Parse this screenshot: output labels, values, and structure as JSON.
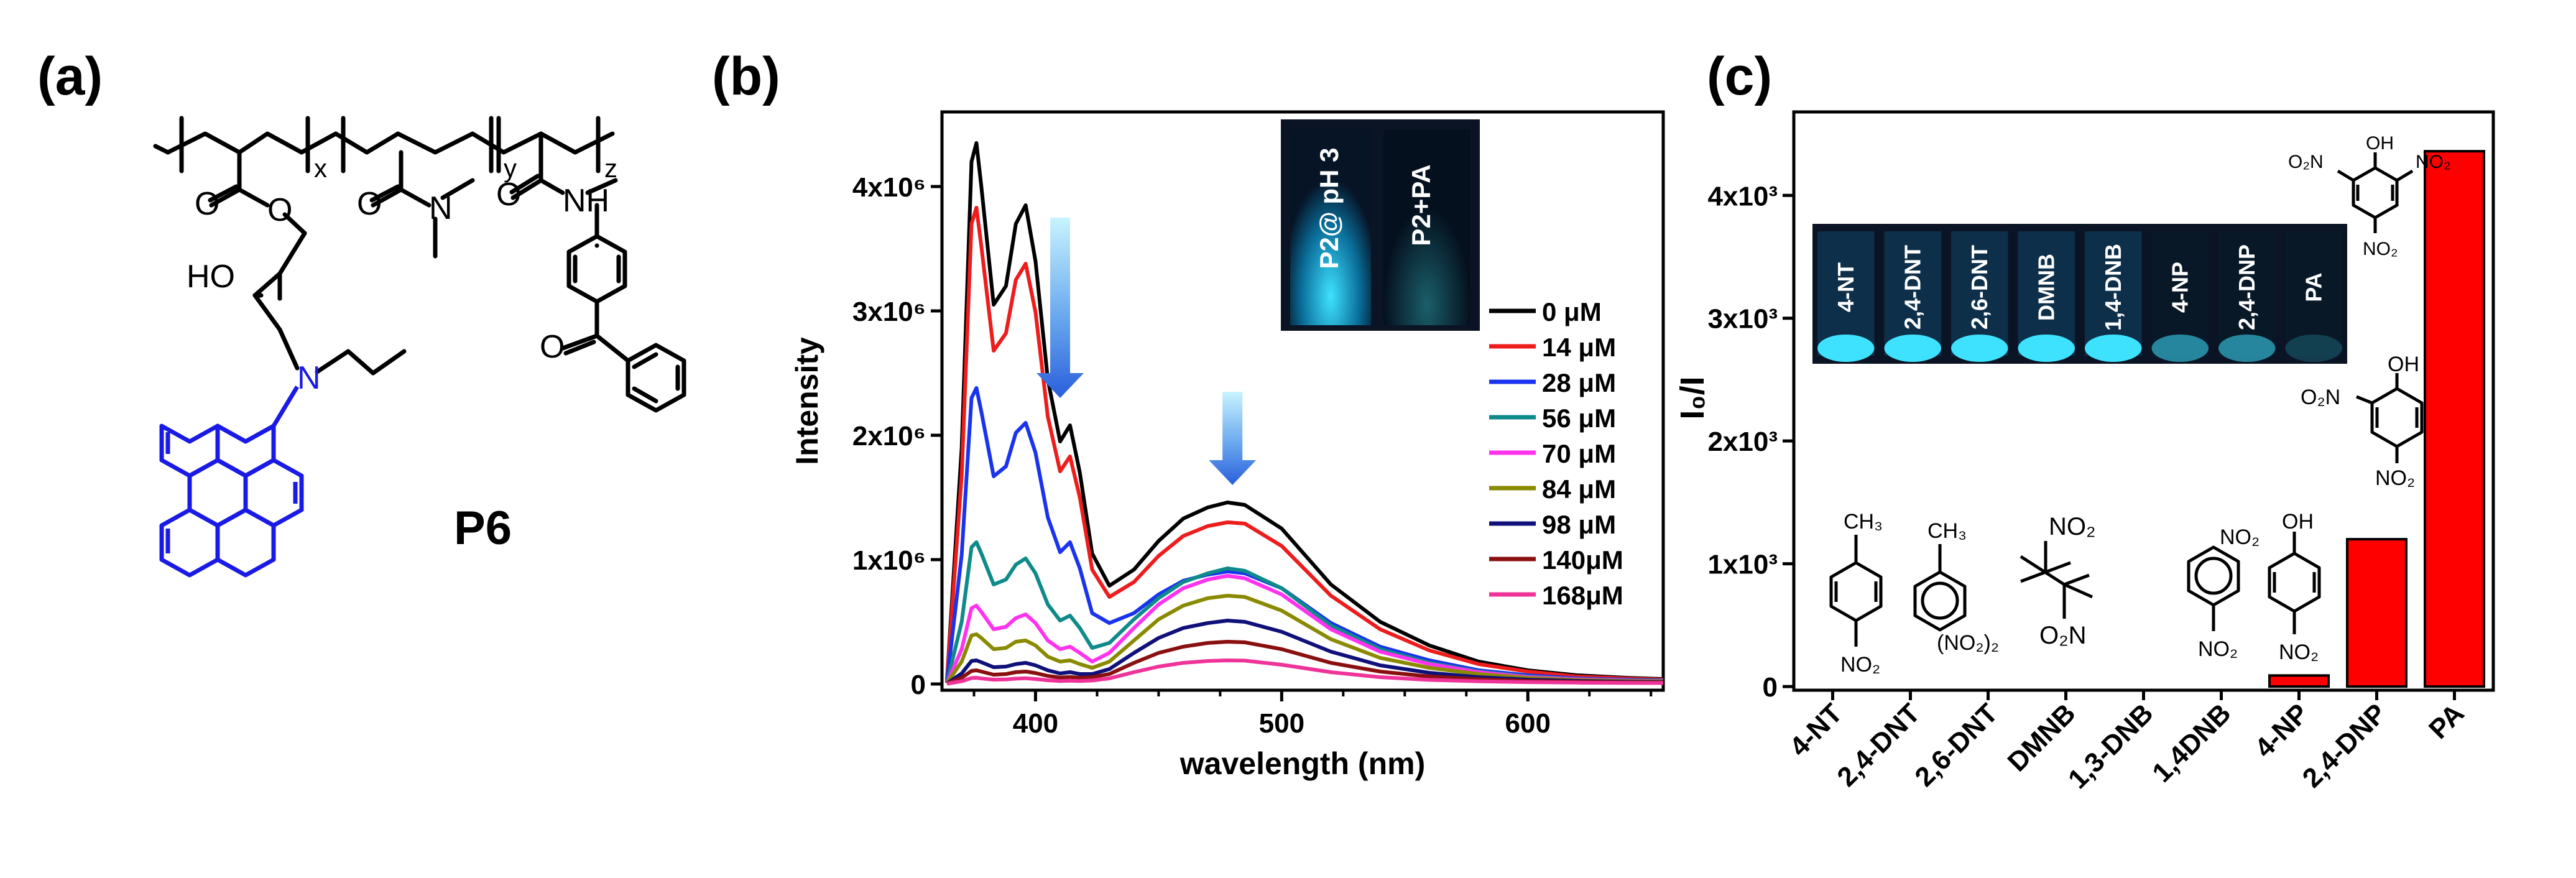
{
  "panels": {
    "a": {
      "label": "(a)"
    },
    "b": {
      "label": "(b)"
    },
    "c": {
      "label": "(c)"
    }
  },
  "structure": {
    "compound_name": "P6",
    "subscripts": [
      "x",
      "y",
      "z"
    ],
    "atoms": {
      "ho": "HO",
      "n": "N",
      "nh": "NH",
      "o": "O"
    }
  },
  "inset_b": {
    "labels": [
      "P2@ pH 3",
      "P2+PA"
    ]
  },
  "inset_c": {
    "labels": [
      "4-NT",
      "2,4-DNT",
      "2,6-DNT",
      "DMNB",
      "1,4-DNB",
      "4-NP",
      "2,4-DNP",
      "PA"
    ]
  },
  "chart_data": [
    {
      "type": "line",
      "panel": "b",
      "xlabel": "wavelength (nm)",
      "ylabel": "Intensity",
      "xlim": [
        362,
        655
      ],
      "ylim": [
        -50000,
        4600000
      ],
      "xticks": [
        400,
        500,
        600
      ],
      "xtick_labels": [
        "400",
        "500",
        "600"
      ],
      "yticks": [
        0,
        1000000,
        2000000,
        3000000,
        4000000
      ],
      "ytick_labels": [
        "0",
        "1x10⁶",
        "2x10⁶",
        "3x10⁶",
        "4x10⁶"
      ],
      "legend_position": "right",
      "x": [
        364,
        370,
        374,
        376,
        378,
        383,
        388,
        392,
        396,
        400,
        405,
        410,
        414,
        418,
        423,
        430,
        440,
        450,
        460,
        470,
        478,
        485,
        500,
        520,
        540,
        560,
        580,
        600,
        620,
        640,
        655
      ],
      "series": [
        {
          "name": "0 μM",
          "legend": "0 μM",
          "color": "#000000",
          "peak": 4350000,
          "values": [
            20000,
            1900000,
            4200000,
            4350000,
            4000000,
            3050000,
            3200000,
            3700000,
            3850000,
            3400000,
            2450000,
            1950000,
            2080000,
            1700000,
            1050000,
            790000,
            920000,
            1150000,
            1330000,
            1420000,
            1460000,
            1440000,
            1250000,
            800000,
            500000,
            310000,
            180000,
            110000,
            70000,
            50000,
            40000
          ]
        },
        {
          "name": "14 μM",
          "legend": "14 μM",
          "color": "#ee1c1c",
          "peak": 3830000,
          "values": [
            18000,
            1680000,
            3700000,
            3830000,
            3520000,
            2680000,
            2820000,
            3250000,
            3380000,
            2990000,
            2150000,
            1710000,
            1830000,
            1500000,
            920000,
            700000,
            820000,
            1030000,
            1190000,
            1270000,
            1300000,
            1290000,
            1110000,
            710000,
            440000,
            270000,
            160000,
            100000,
            60000,
            45000,
            35000
          ]
        },
        {
          "name": "28 μM",
          "legend": "28 μM",
          "color": "#1a33ee",
          "peak": 2380000,
          "values": [
            12000,
            1040000,
            2300000,
            2380000,
            2190000,
            1670000,
            1750000,
            2020000,
            2100000,
            1860000,
            1340000,
            1060000,
            1140000,
            930000,
            570000,
            490000,
            570000,
            720000,
            830000,
            880000,
            905000,
            890000,
            770000,
            490000,
            300000,
            190000,
            110000,
            70000,
            45000,
            35000,
            28000
          ]
        },
        {
          "name": "56 μM",
          "legend": "56 μM",
          "color": "#0f8a8a",
          "peak": 1140000,
          "values": [
            8000,
            500000,
            1100000,
            1140000,
            1050000,
            800000,
            840000,
            960000,
            1010000,
            890000,
            640000,
            510000,
            550000,
            450000,
            290000,
            330000,
            520000,
            690000,
            820000,
            890000,
            930000,
            910000,
            770000,
            470000,
            280000,
            170000,
            100000,
            60000,
            40000,
            30000,
            25000
          ]
        },
        {
          "name": "70 μM",
          "legend": "70 μM",
          "color": "#ff33ee",
          "peak": 630000,
          "values": [
            6000,
            280000,
            610000,
            630000,
            580000,
            440000,
            460000,
            530000,
            560000,
            490000,
            350000,
            280000,
            300000,
            250000,
            180000,
            250000,
            450000,
            640000,
            770000,
            840000,
            870000,
            850000,
            720000,
            440000,
            260000,
            160000,
            95000,
            55000,
            38000,
            28000,
            22000
          ]
        },
        {
          "name": "84 μM",
          "legend": "84 μM",
          "color": "#8a8a00",
          "peak": 400000,
          "values": [
            5000,
            180000,
            390000,
            400000,
            370000,
            280000,
            290000,
            340000,
            350000,
            310000,
            220000,
            180000,
            190000,
            160000,
            130000,
            180000,
            350000,
            520000,
            630000,
            690000,
            710000,
            700000,
            590000,
            360000,
            210000,
            130000,
            80000,
            48000,
            32000,
            24000,
            20000
          ]
        },
        {
          "name": "98 μM",
          "legend": "98 μM",
          "color": "#10107a",
          "peak": 190000,
          "values": [
            4000,
            85000,
            185000,
            190000,
            175000,
            135000,
            140000,
            160000,
            170000,
            150000,
            110000,
            85000,
            95000,
            80000,
            80000,
            120000,
            250000,
            370000,
            450000,
            490000,
            510000,
            500000,
            420000,
            260000,
            150000,
            90000,
            55000,
            35000,
            25000,
            18000,
            15000
          ]
        },
        {
          "name": "140 μM",
          "legend": "140μM",
          "color": "#8a1010",
          "peak": 110000,
          "values": [
            3000,
            50000,
            105000,
            110000,
            100000,
            75000,
            80000,
            95000,
            100000,
            88000,
            65000,
            52000,
            56000,
            50000,
            55000,
            80000,
            170000,
            250000,
            300000,
            330000,
            340000,
            335000,
            280000,
            170000,
            100000,
            60000,
            38000,
            25000,
            18000,
            14000,
            12000
          ]
        },
        {
          "name": "168 μM",
          "legend": "168μM",
          "color": "#ee3399",
          "peak": 50000,
          "values": [
            2000,
            22000,
            48000,
            50000,
            45000,
            35000,
            37000,
            43000,
            46000,
            40000,
            30000,
            24000,
            26000,
            24000,
            28000,
            45000,
            95000,
            140000,
            170000,
            185000,
            190000,
            188000,
            155000,
            95000,
            55000,
            33000,
            22000,
            15000,
            11000,
            9000,
            8000
          ]
        }
      ],
      "arrows": [
        {
          "x": 410,
          "y_top": 3750000,
          "y_bottom": 2300000
        },
        {
          "x": 480,
          "y_top": 2350000,
          "y_bottom": 1600000
        }
      ]
    },
    {
      "type": "bar",
      "panel": "c",
      "ylabel": "I₀/I",
      "categories": [
        "4-NT",
        "2,4-DNT",
        "2,6-DNT",
        "DMNB",
        "1,3-DNB",
        "1,4DNB",
        "4-NP",
        "2,4-DNP",
        "PA"
      ],
      "values": [
        0,
        0,
        0,
        0,
        0,
        0,
        90,
        1200,
        4360
      ],
      "ylim": [
        -30,
        4680
      ],
      "yticks": [
        0,
        1000,
        2000,
        3000,
        4000
      ],
      "ytick_labels": [
        "0",
        "1x10³",
        "2x10³",
        "3x10³",
        "4x10³"
      ],
      "bar_color": "#ff0000"
    }
  ],
  "molecules": {
    "nt4": {
      "me": "CH₃",
      "no2": "NO₂"
    },
    "dnt": {
      "me": "CH₃",
      "no2": "(NO₂)₂"
    },
    "dmnb": {
      "no2_top": "NO₂",
      "no2_bottom": "O₂N"
    },
    "dnb": {
      "no2": "NO₂"
    },
    "np4": {
      "oh": "OH",
      "no2": "NO₂"
    },
    "dnp24": {
      "oh": "OH",
      "no2": "O₂N"
    },
    "pa": {
      "oh": "OH",
      "no2_left": "O₂N",
      "no2_right": "NO₂"
    }
  }
}
